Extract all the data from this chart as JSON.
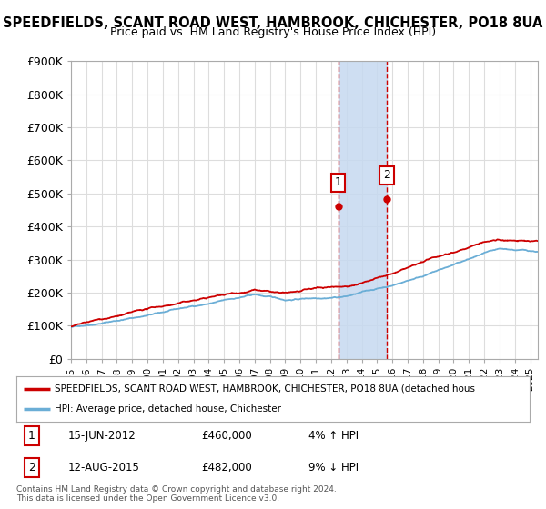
{
  "title": "SPEEDFIELDS, SCANT ROAD WEST, HAMBROOK, CHICHESTER, PO18 8UA",
  "subtitle": "Price paid vs. HM Land Registry's House Price Index (HPI)",
  "ylabel_ticks": [
    "£0",
    "£100K",
    "£200K",
    "£300K",
    "£400K",
    "£500K",
    "£600K",
    "£700K",
    "£800K",
    "£900K"
  ],
  "ytick_values": [
    0,
    100000,
    200000,
    300000,
    400000,
    500000,
    600000,
    700000,
    800000,
    900000
  ],
  "ylim": [
    0,
    900000
  ],
  "xlim_start": 1995.0,
  "xlim_end": 2025.5,
  "hpi_color": "#6baed6",
  "price_color": "#cc0000",
  "highlight_color": "#c6d9f0",
  "sale1_x": 2012.45,
  "sale1_y": 460000,
  "sale2_x": 2015.62,
  "sale2_y": 482000,
  "legend_line1": "SPEEDFIELDS, SCANT ROAD WEST, HAMBROOK, CHICHESTER, PO18 8UA (detached hous",
  "legend_line2": "HPI: Average price, detached house, Chichester",
  "table_row1_num": "1",
  "table_row1_date": "15-JUN-2012",
  "table_row1_price": "£460,000",
  "table_row1_hpi": "4% ↑ HPI",
  "table_row2_num": "2",
  "table_row2_date": "12-AUG-2015",
  "table_row2_price": "£482,000",
  "table_row2_hpi": "9% ↓ HPI",
  "footer": "Contains HM Land Registry data © Crown copyright and database right 2024.\nThis data is licensed under the Open Government Licence v3.0.",
  "bg_color": "#ffffff",
  "grid_color": "#dddddd"
}
